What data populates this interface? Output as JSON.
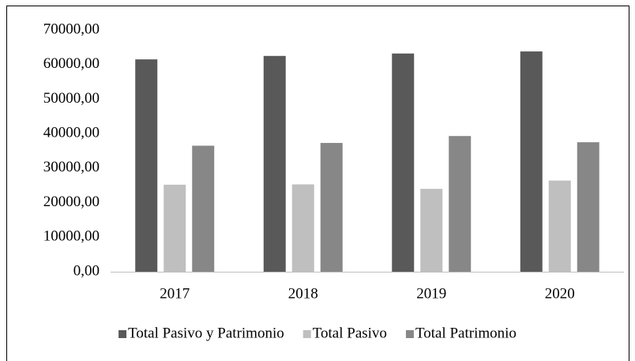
{
  "chart_data": {
    "type": "bar",
    "categories": [
      "2017",
      "2018",
      "2019",
      "2020"
    ],
    "series": [
      {
        "name": "Total Pasivo y Patrimonio",
        "color": "#595959",
        "values": [
          61500,
          62500,
          63200,
          63800
        ]
      },
      {
        "name": "Total Pasivo",
        "color": "#bfbfbf",
        "values": [
          25200,
          25300,
          24000,
          26400
        ]
      },
      {
        "name": "Total Patrimonio",
        "color": "#878787",
        "values": [
          36500,
          37300,
          39300,
          37500
        ]
      }
    ],
    "ylim": [
      0,
      70000
    ],
    "yticks": [
      {
        "value": 0,
        "label": "0,00"
      },
      {
        "value": 10000,
        "label": "10000,00"
      },
      {
        "value": 20000,
        "label": "20000,00"
      },
      {
        "value": 30000,
        "label": "30000,00"
      },
      {
        "value": 40000,
        "label": "40000,00"
      },
      {
        "value": 50000,
        "label": "50000,00"
      },
      {
        "value": 60000,
        "label": "60000,00"
      },
      {
        "value": 70000,
        "label": "70000,00"
      }
    ],
    "grid": false,
    "legend": "bottom"
  }
}
